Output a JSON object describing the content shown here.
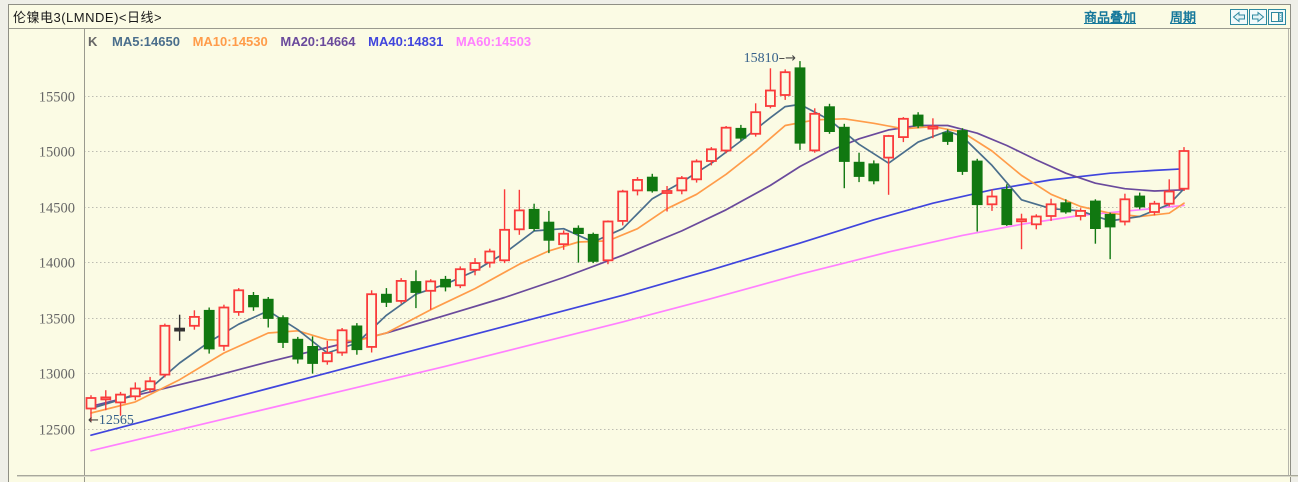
{
  "titlebar": {
    "title": "伦镍电3(LMNDE)<日线>",
    "links": [
      {
        "label": "商品叠加"
      },
      {
        "label": "周期"
      }
    ],
    "icons": [
      {
        "name": "prev-arrow-icon"
      },
      {
        "name": "next-arrow-icon"
      },
      {
        "name": "split-window-icon"
      }
    ]
  },
  "colors": {
    "background": "#FBFBE4",
    "border": "#8F8F85",
    "grid": "#BDBDB2",
    "axis": "#9A9A8E",
    "link": "#16789B",
    "icon_teal": "#2E89A0",
    "tick_label": "#666666",
    "annotation": "#35608A",
    "up_candle": "#FA3B3B",
    "down_candle": "#117811",
    "doji_candle": "#333333"
  },
  "chart_data": {
    "type": "candlestick",
    "title": "伦镍电3(LMNDE)<日线>",
    "instrument": "伦镍电3",
    "code": "LMNDE",
    "period": "日线",
    "indicator_label": "K",
    "moving_averages": [
      {
        "name": "MA5",
        "display": "MA5:14650",
        "value": 14650,
        "color": "#4A6E8C"
      },
      {
        "name": "MA10",
        "display": "MA10:14530",
        "value": 14530,
        "color": "#FF9C4A"
      },
      {
        "name": "MA20",
        "display": "MA20:14664",
        "value": 14664,
        "color": "#6A4A9C"
      },
      {
        "name": "MA40",
        "display": "MA40:14831",
        "value": 14831,
        "color": "#4045DD"
      },
      {
        "name": "MA60",
        "display": "MA60:14503",
        "value": 14503,
        "color": "#FF80FF"
      }
    ],
    "y_ticks": [
      15500,
      15000,
      14500,
      14000,
      13500,
      13000,
      12500
    ],
    "ylim": [
      12117,
      16099
    ],
    "grid": "dotted-horizontal",
    "legend_position": "top-left-inside",
    "high_label": "15810",
    "low_label": "12565",
    "annotations": [
      {
        "text": "15810",
        "candle_index": 48,
        "price": 15810,
        "side": "high"
      },
      {
        "text": "12565",
        "candle_index": 0,
        "price": 12565,
        "side": "low"
      }
    ],
    "candles": [
      [
        12680,
        12800,
        12565,
        12775
      ],
      [
        12770,
        12845,
        12665,
        12780
      ],
      [
        12735,
        12830,
        12615,
        12805
      ],
      [
        12790,
        12915,
        12755,
        12860
      ],
      [
        12855,
        12965,
        12825,
        12925
      ],
      [
        12985,
        13445,
        12960,
        13425
      ],
      [
        13400,
        13525,
        13290,
        13400
      ],
      [
        13425,
        13565,
        13390,
        13505
      ],
      [
        13560,
        13590,
        13175,
        13220
      ],
      [
        13245,
        13615,
        13200,
        13590
      ],
      [
        13550,
        13765,
        13515,
        13745
      ],
      [
        13695,
        13730,
        13560,
        13600
      ],
      [
        13660,
        13685,
        13410,
        13495
      ],
      [
        13495,
        13520,
        13225,
        13280
      ],
      [
        13300,
        13325,
        13085,
        13130
      ],
      [
        13235,
        13330,
        12995,
        13090
      ],
      [
        13105,
        13290,
        13075,
        13180
      ],
      [
        13185,
        13405,
        13155,
        13385
      ],
      [
        13420,
        13450,
        13165,
        13215
      ],
      [
        13235,
        13745,
        13185,
        13710
      ],
      [
        13705,
        13765,
        13595,
        13640
      ],
      [
        13650,
        13855,
        13625,
        13830
      ],
      [
        13820,
        13925,
        13585,
        13730
      ],
      [
        13740,
        13845,
        13570,
        13825
      ],
      [
        13840,
        13875,
        13735,
        13780
      ],
      [
        13790,
        13960,
        13765,
        13935
      ],
      [
        13930,
        14035,
        13880,
        13990
      ],
      [
        13995,
        14120,
        13950,
        14095
      ],
      [
        14015,
        14655,
        13990,
        14290
      ],
      [
        14295,
        14650,
        14245,
        14465
      ],
      [
        14470,
        14525,
        14280,
        14305
      ],
      [
        14355,
        14460,
        14080,
        14200
      ],
      [
        14160,
        14285,
        14110,
        14255
      ],
      [
        14300,
        14330,
        13995,
        14260
      ],
      [
        14245,
        14265,
        13990,
        14010
      ],
      [
        14015,
        14375,
        13980,
        14365
      ],
      [
        14370,
        14650,
        14330,
        14635
      ],
      [
        14645,
        14765,
        14600,
        14740
      ],
      [
        14760,
        14795,
        14625,
        14645
      ],
      [
        14625,
        14685,
        14455,
        14640
      ],
      [
        14645,
        14775,
        14610,
        14755
      ],
      [
        14745,
        14925,
        14715,
        14905
      ],
      [
        14910,
        15035,
        14870,
        15015
      ],
      [
        15005,
        15225,
        14980,
        15210
      ],
      [
        15200,
        15235,
        15095,
        15120
      ],
      [
        15155,
        15430,
        15130,
        15350
      ],
      [
        15405,
        15745,
        15385,
        15545
      ],
      [
        15505,
        15735,
        15460,
        15710
      ],
      [
        15745,
        15810,
        15010,
        15075
      ],
      [
        15005,
        15385,
        14985,
        15335
      ],
      [
        15395,
        15425,
        15155,
        15180
      ],
      [
        15210,
        15245,
        14665,
        14910
      ],
      [
        14895,
        14985,
        14720,
        14775
      ],
      [
        14880,
        14915,
        14700,
        14735
      ],
      [
        14940,
        15145,
        14605,
        15135
      ],
      [
        15125,
        15305,
        15080,
        15290
      ],
      [
        15320,
        15350,
        15205,
        15230
      ],
      [
        15210,
        15295,
        15115,
        15220
      ],
      [
        15160,
        15195,
        15055,
        15090
      ],
      [
        15180,
        15205,
        14785,
        14820
      ],
      [
        14905,
        14930,
        14275,
        14520
      ],
      [
        14520,
        14655,
        14460,
        14590
      ],
      [
        14650,
        14700,
        14325,
        14340
      ],
      [
        14370,
        14435,
        14115,
        14385
      ],
      [
        14340,
        14430,
        14295,
        14410
      ],
      [
        14415,
        14570,
        14370,
        14520
      ],
      [
        14530,
        14565,
        14435,
        14455
      ],
      [
        14415,
        14485,
        14375,
        14460
      ],
      [
        14545,
        14565,
        14165,
        14305
      ],
      [
        14425,
        14445,
        14025,
        14320
      ],
      [
        14365,
        14615,
        14330,
        14565
      ],
      [
        14590,
        14625,
        14475,
        14500
      ],
      [
        14450,
        14550,
        14420,
        14525
      ],
      [
        14525,
        14745,
        14500,
        14635
      ],
      [
        14660,
        15035,
        14640,
        15000
      ]
    ],
    "ma_lines": [
      {
        "name": "MA5",
        "color": "#4A6E8C",
        "points": [
          [
            0,
            12680
          ],
          [
            2,
            12760
          ],
          [
            4,
            12860
          ],
          [
            6,
            13090
          ],
          [
            8,
            13280
          ],
          [
            10,
            13440
          ],
          [
            12,
            13560
          ],
          [
            14,
            13390
          ],
          [
            16,
            13180
          ],
          [
            18,
            13270
          ],
          [
            20,
            13520
          ],
          [
            22,
            13710
          ],
          [
            24,
            13800
          ],
          [
            26,
            13920
          ],
          [
            28,
            14080
          ],
          [
            30,
            14280
          ],
          [
            32,
            14300
          ],
          [
            34,
            14180
          ],
          [
            36,
            14300
          ],
          [
            38,
            14570
          ],
          [
            40,
            14720
          ],
          [
            42,
            14890
          ],
          [
            44,
            15090
          ],
          [
            46,
            15300
          ],
          [
            47,
            15400
          ],
          [
            48,
            15420
          ],
          [
            50,
            15280
          ],
          [
            52,
            15060
          ],
          [
            54,
            14890
          ],
          [
            56,
            15080
          ],
          [
            58,
            15180
          ],
          [
            59,
            15130
          ],
          [
            61,
            14870
          ],
          [
            63,
            14560
          ],
          [
            65,
            14480
          ],
          [
            67,
            14460
          ],
          [
            69,
            14370
          ],
          [
            71,
            14410
          ],
          [
            73,
            14520
          ],
          [
            74,
            14660
          ]
        ]
      },
      {
        "name": "MA10",
        "color": "#FF9C4A",
        "points": [
          [
            0,
            12640
          ],
          [
            3,
            12740
          ],
          [
            6,
            12940
          ],
          [
            9,
            13180
          ],
          [
            12,
            13360
          ],
          [
            14,
            13380
          ],
          [
            16,
            13300
          ],
          [
            18,
            13290
          ],
          [
            20,
            13360
          ],
          [
            23,
            13570
          ],
          [
            26,
            13760
          ],
          [
            29,
            13980
          ],
          [
            31,
            14100
          ],
          [
            33,
            14180
          ],
          [
            35,
            14190
          ],
          [
            37,
            14300
          ],
          [
            39,
            14480
          ],
          [
            41,
            14610
          ],
          [
            43,
            14790
          ],
          [
            45,
            15000
          ],
          [
            47,
            15230
          ],
          [
            49,
            15280
          ],
          [
            51,
            15290
          ],
          [
            53,
            15250
          ],
          [
            55,
            15200
          ],
          [
            57,
            15220
          ],
          [
            59,
            15170
          ],
          [
            61,
            15000
          ],
          [
            63,
            14780
          ],
          [
            65,
            14610
          ],
          [
            67,
            14500
          ],
          [
            69,
            14440
          ],
          [
            71,
            14410
          ],
          [
            73,
            14440
          ],
          [
            74,
            14530
          ]
        ]
      },
      {
        "name": "MA20",
        "color": "#6A4A9C",
        "points": [
          [
            0,
            12700
          ],
          [
            4,
            12830
          ],
          [
            8,
            12960
          ],
          [
            12,
            13100
          ],
          [
            16,
            13230
          ],
          [
            20,
            13360
          ],
          [
            24,
            13520
          ],
          [
            28,
            13680
          ],
          [
            32,
            13860
          ],
          [
            36,
            14060
          ],
          [
            40,
            14280
          ],
          [
            43,
            14470
          ],
          [
            46,
            14690
          ],
          [
            48,
            14860
          ],
          [
            50,
            15000
          ],
          [
            52,
            15110
          ],
          [
            54,
            15190
          ],
          [
            56,
            15230
          ],
          [
            58,
            15230
          ],
          [
            60,
            15160
          ],
          [
            62,
            15050
          ],
          [
            64,
            14920
          ],
          [
            66,
            14800
          ],
          [
            68,
            14710
          ],
          [
            70,
            14660
          ],
          [
            72,
            14640
          ],
          [
            74,
            14650
          ]
        ]
      },
      {
        "name": "MA40",
        "color": "#4045DD",
        "points": [
          [
            0,
            12440
          ],
          [
            6,
            12650
          ],
          [
            12,
            12860
          ],
          [
            18,
            13070
          ],
          [
            24,
            13280
          ],
          [
            30,
            13490
          ],
          [
            36,
            13700
          ],
          [
            42,
            13930
          ],
          [
            48,
            14170
          ],
          [
            53,
            14380
          ],
          [
            57,
            14530
          ],
          [
            61,
            14650
          ],
          [
            65,
            14740
          ],
          [
            69,
            14800
          ],
          [
            72,
            14825
          ],
          [
            74,
            14840
          ]
        ]
      },
      {
        "name": "MA60",
        "color": "#FF80FF",
        "points": [
          [
            0,
            12300
          ],
          [
            6,
            12490
          ],
          [
            12,
            12680
          ],
          [
            18,
            12870
          ],
          [
            24,
            13060
          ],
          [
            30,
            13260
          ],
          [
            36,
            13460
          ],
          [
            42,
            13670
          ],
          [
            48,
            13890
          ],
          [
            54,
            14090
          ],
          [
            59,
            14240
          ],
          [
            63,
            14340
          ],
          [
            67,
            14420
          ],
          [
            71,
            14470
          ],
          [
            74,
            14510
          ]
        ]
      }
    ]
  }
}
